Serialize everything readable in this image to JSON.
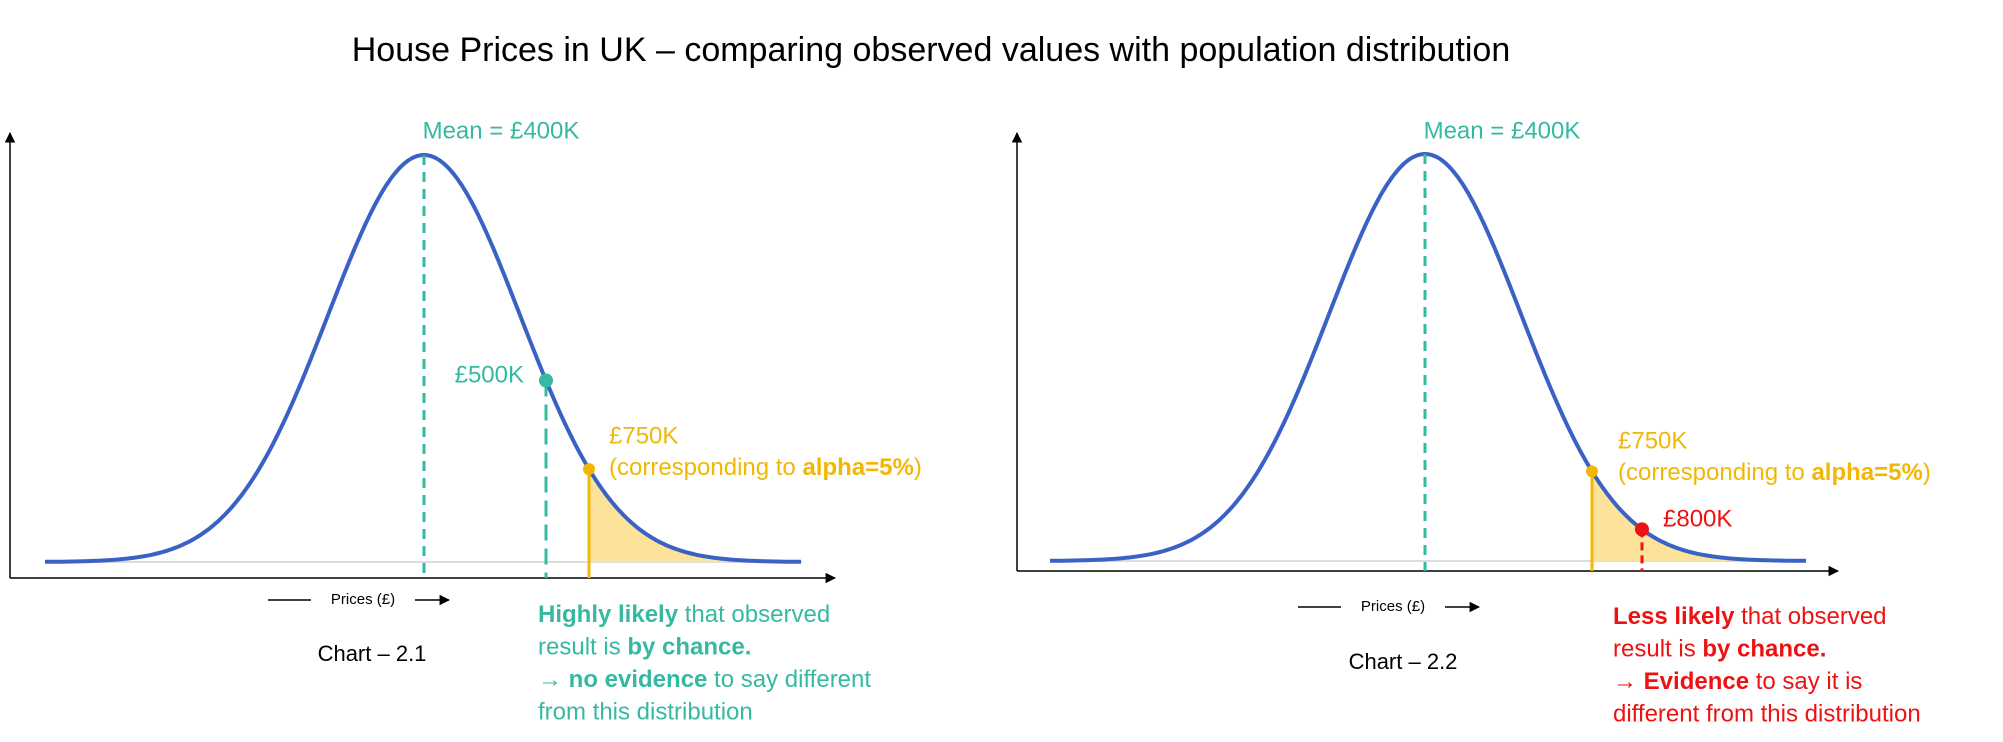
{
  "title": "House Prices in UK – comparing observed values with population distribution",
  "panels": [
    {
      "mean_label": "Mean = £400K",
      "axis_label": "Prices (£)",
      "caption": "Chart – 2.1",
      "observed_label": "£500K",
      "critical_label": "£750K",
      "critical_note": [
        {
          "text": "(corresponding to "
        },
        {
          "text": "alpha=5%",
          "bold": true
        },
        {
          "text": ")"
        }
      ],
      "conclusion": [
        [
          {
            "text": "Highly likely",
            "bold": true
          },
          {
            "text": " that observed"
          }
        ],
        [
          {
            "text": "result is "
          },
          {
            "text": "by chance.",
            "bold": true
          }
        ],
        [
          {
            "text": "→ "
          },
          {
            "text": "no evidence",
            "bold": true
          },
          {
            "text": " to say different"
          }
        ],
        [
          {
            "text": "from this distribution"
          }
        ]
      ]
    },
    {
      "mean_label": "Mean = £400K",
      "axis_label": "Prices (£)",
      "caption": "Chart – 2.2",
      "observed_label": "£800K",
      "critical_label": "£750K",
      "critical_note": [
        {
          "text": "(corresponding to "
        },
        {
          "text": "alpha=5%",
          "bold": true
        },
        {
          "text": ")"
        }
      ],
      "conclusion": [
        [
          {
            "text": "Less likely",
            "bold": true
          },
          {
            "text": " that observed"
          }
        ],
        [
          {
            "text": "result is "
          },
          {
            "text": "by chance.",
            "bold": true
          }
        ],
        [
          {
            "text": "→ "
          },
          {
            "text": "Evidence",
            "bold": true
          },
          {
            "text": " to say it is"
          }
        ],
        [
          {
            "text": "different from this distribution"
          }
        ]
      ]
    }
  ]
}
